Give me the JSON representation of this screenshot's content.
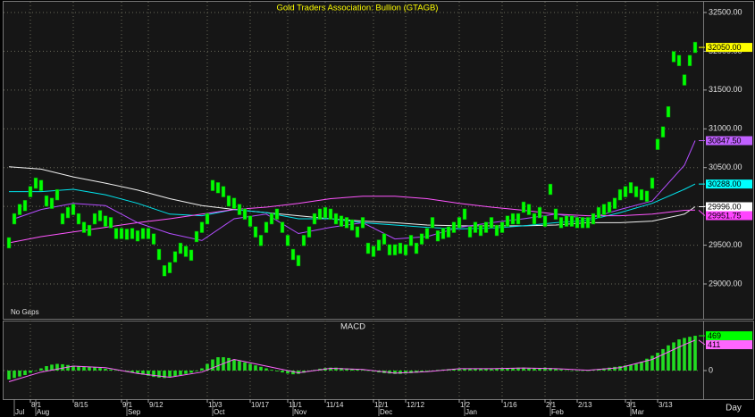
{
  "chart_data": {
    "type": "stock",
    "title": "Gold Traders Association: Bullion (GTAGB)",
    "annotation": "No Gaps",
    "x_label": "Day",
    "grid": true,
    "xlim": [
      -1,
      129
    ],
    "xticks": [
      {
        "value": 4,
        "label": "8/1"
      },
      {
        "value": 12,
        "label": "8/15"
      },
      {
        "value": 21,
        "label": "9/1"
      },
      {
        "value": 26,
        "label": "9/12"
      },
      {
        "value": 37,
        "label": "10/3"
      },
      {
        "value": 45,
        "label": "10/17"
      },
      {
        "value": 52,
        "label": "11/1"
      },
      {
        "value": 59,
        "label": "11/14"
      },
      {
        "value": 68,
        "label": "12/1"
      },
      {
        "value": 74,
        "label": "12/12"
      },
      {
        "value": 84,
        "label": "1/2"
      },
      {
        "value": 92,
        "label": "1/16"
      },
      {
        "value": 100,
        "label": "2/1"
      },
      {
        "value": 106,
        "label": "2/13"
      },
      {
        "value": 115,
        "label": "3/1"
      },
      {
        "value": 121,
        "label": "3/13"
      }
    ],
    "month_ticks": [
      {
        "value": 1,
        "label": "Jul"
      },
      {
        "value": 5,
        "label": "Aug"
      },
      {
        "value": 22,
        "label": "Sep"
      },
      {
        "value": 38,
        "label": "Oct"
      },
      {
        "value": 53,
        "label": "Nov"
      },
      {
        "value": 69,
        "label": "Dec"
      },
      {
        "value": 85,
        "label": "Jan"
      },
      {
        "value": 101,
        "label": "Feb"
      },
      {
        "value": 116,
        "label": "Mar"
      }
    ],
    "ylim": [
      28551,
      32638
    ],
    "yticks": [
      {
        "value": 29000,
        "label": "29000.00"
      },
      {
        "value": 29500,
        "label": "29500.00"
      },
      {
        "value": 30000,
        "label": "30000.00"
      },
      {
        "value": 30500,
        "label": "30500.00"
      },
      {
        "value": 31000,
        "label": "31000.00"
      },
      {
        "value": 31500,
        "label": "31500.00"
      },
      {
        "value": 32000,
        "label": "32000.00"
      },
      {
        "value": 32500,
        "label": "32500.00"
      }
    ],
    "price": {
      "color": "#00ff00",
      "values": [
        29530,
        29840,
        29960,
        30010,
        30190,
        30300,
        30270,
        30070,
        30040,
        30150,
        29840,
        29920,
        29960,
        29840,
        29730,
        29690,
        29840,
        29880,
        29810,
        29790,
        29650,
        29650,
        29640,
        29650,
        29620,
        29650,
        29650,
        29580,
        29380,
        29170,
        29210,
        29350,
        29460,
        29420,
        29370,
        29610,
        29730,
        29840,
        30270,
        30240,
        30190,
        30070,
        30040,
        29960,
        29900,
        29810,
        29670,
        29560,
        29730,
        29840,
        29900,
        29730,
        29560,
        29380,
        29300,
        29560,
        29670,
        29840,
        29900,
        29920,
        29900,
        29840,
        29810,
        29790,
        29760,
        29670,
        29790,
        29460,
        29420,
        29500,
        29580,
        29440,
        29440,
        29460,
        29440,
        29560,
        29460,
        29580,
        29650,
        29790,
        29620,
        29650,
        29670,
        29730,
        29790,
        29900,
        29670,
        29730,
        29690,
        29730,
        29790,
        29690,
        29730,
        29810,
        29840,
        29840,
        29990,
        29960,
        29840,
        29920,
        29810,
        30220,
        29900,
        29790,
        29810,
        29810,
        29790,
        29790,
        29790,
        29840,
        29920,
        29960,
        29990,
        30040,
        30150,
        30190,
        30240,
        30190,
        30150,
        30130,
        30300,
        30800,
        30960,
        31220,
        31930,
        31880,
        31630,
        31880,
        32050
      ]
    },
    "series": [
      {
        "color": "#f0f0f0",
        "x": [
          0,
          6,
          12,
          18,
          24,
          30,
          36,
          42,
          48,
          54,
          60,
          66,
          72,
          78,
          84,
          90,
          96,
          102,
          108,
          114,
          120,
          126,
          128
        ],
        "values": [
          30510,
          30480,
          30380,
          30300,
          30210,
          30100,
          30010,
          29960,
          29920,
          29880,
          29840,
          29810,
          29790,
          29760,
          29750,
          29750,
          29750,
          29760,
          29790,
          29790,
          29810,
          29900,
          29996
        ]
      },
      {
        "color": "#00e5ee",
        "x": [
          0,
          6,
          12,
          18,
          24,
          30,
          36,
          42,
          48,
          54,
          60,
          66,
          72,
          78,
          84,
          90,
          96,
          102,
          108,
          114,
          120,
          126,
          128
        ],
        "values": [
          30190,
          30190,
          30220,
          30150,
          30040,
          29900,
          29880,
          29960,
          29920,
          29840,
          29840,
          29790,
          29760,
          29730,
          29710,
          29720,
          29750,
          29790,
          29820,
          29920,
          30040,
          30220,
          30288
        ]
      },
      {
        "color": "#ff55ff",
        "x": [
          0,
          6,
          12,
          18,
          24,
          30,
          36,
          42,
          48,
          54,
          60,
          66,
          72,
          78,
          84,
          90,
          96,
          102,
          108,
          114,
          120,
          126,
          128
        ],
        "values": [
          29530,
          29610,
          29670,
          29730,
          29790,
          29840,
          29900,
          29960,
          29990,
          30040,
          30100,
          30130,
          30130,
          30100,
          30040,
          29990,
          29950,
          29900,
          29880,
          29880,
          29900,
          29950,
          29951.75
        ]
      },
      {
        "color": "#b44dff",
        "x": [
          1,
          6,
          12,
          18,
          24,
          30,
          36,
          42,
          48,
          54,
          60,
          66,
          72,
          78,
          84,
          90,
          96,
          102,
          108,
          114,
          120,
          126,
          128
        ],
        "values": [
          29840,
          29960,
          30040,
          30010,
          29790,
          29650,
          29560,
          29840,
          29900,
          29650,
          29730,
          29790,
          29580,
          29610,
          29730,
          29790,
          29840,
          29900,
          29840,
          29960,
          30070,
          30530,
          30847.5
        ]
      }
    ],
    "markers": [
      {
        "value": 32050,
        "label": "32050.00",
        "color": "#ffff00"
      },
      {
        "value": 30847.5,
        "label": "30847.50",
        "color": "#c060ff"
      },
      {
        "value": 30288,
        "label": "30288.00",
        "color": "#00ffff"
      },
      {
        "value": 29996,
        "label": "29996.00",
        "color": "#ffffff"
      },
      {
        "value": 29951.75,
        "label": "29951.75",
        "color": "#ff44ff"
      }
    ],
    "macd": {
      "title": "MACD",
      "ylim": [
        -385,
        674
      ],
      "yticks": [
        0
      ],
      "histogram": {
        "color": "#22dd22",
        "values": [
          -120,
          -100,
          -80,
          -60,
          -30,
          0,
          30,
          60,
          80,
          90,
          85,
          75,
          65,
          60,
          55,
          50,
          45,
          35,
          25,
          15,
          5,
          -5,
          -15,
          -25,
          -40,
          -55,
          -70,
          -85,
          -95,
          -100,
          -90,
          -75,
          -60,
          -45,
          -30,
          -10,
          30,
          90,
          150,
          180,
          180,
          170,
          150,
          130,
          110,
          90,
          70,
          50,
          30,
          10,
          -10,
          -25,
          -40,
          -50,
          -45,
          -30,
          -10,
          10,
          25,
          35,
          40,
          40,
          35,
          30,
          25,
          20,
          10,
          0,
          -15,
          -25,
          -35,
          -40,
          -45,
          -45,
          -40,
          -35,
          -30,
          -20,
          -10,
          0,
          10,
          15,
          20,
          25,
          30,
          30,
          30,
          30,
          25,
          25,
          20,
          25,
          30,
          35,
          35,
          40,
          40,
          35,
          30,
          35,
          40,
          35,
          25,
          15,
          5,
          0,
          -5,
          -5,
          0,
          10,
          20,
          30,
          40,
          50,
          60,
          70,
          80,
          90,
          120,
          160,
          200,
          240,
          290,
          340,
          380,
          420,
          440,
          455,
          469
        ]
      },
      "signal": {
        "color": "#ff66ff",
        "x": [
          0,
          6,
          12,
          18,
          24,
          30,
          36,
          42,
          48,
          54,
          60,
          66,
          72,
          78,
          84,
          90,
          96,
          102,
          108,
          114,
          120,
          126,
          128
        ],
        "values": [
          -150,
          -20,
          60,
          40,
          -40,
          -90,
          -20,
          150,
          60,
          -30,
          30,
          15,
          -35,
          -15,
          25,
          25,
          35,
          25,
          5,
          40,
          150,
          350,
          411
        ]
      },
      "markers": [
        {
          "value": 469,
          "label": "469",
          "color": "#00ff00"
        },
        {
          "value": 411,
          "label": "411",
          "color": "#ff66ff"
        }
      ]
    }
  }
}
